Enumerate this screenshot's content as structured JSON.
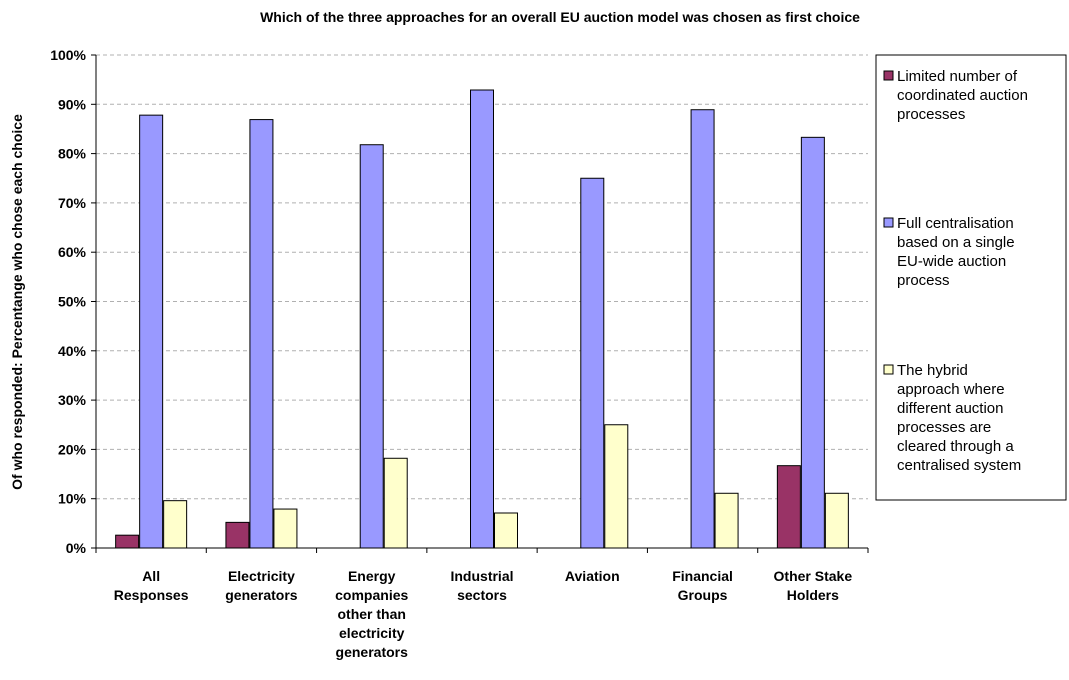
{
  "chart_data": {
    "type": "bar",
    "title": "Which of the three approaches for an overall EU auction model was chosen as first choice",
    "xlabel": "",
    "ylabel": "Of who responded: Percentange who chose each choice",
    "ylim": [
      0,
      100
    ],
    "yticks": [
      "0%",
      "10%",
      "20%",
      "30%",
      "40%",
      "50%",
      "60%",
      "70%",
      "80%",
      "90%",
      "100%"
    ],
    "grid": true,
    "legend_position": "right",
    "categories": [
      [
        "All",
        "Responses"
      ],
      [
        "Electricity",
        "generators"
      ],
      [
        "Energy",
        "companies",
        "other than",
        "electricity",
        "generators"
      ],
      [
        "Industrial",
        "sectors"
      ],
      [
        "Aviation"
      ],
      [
        "Financial",
        "Groups"
      ],
      [
        "Other Stake",
        "Holders"
      ]
    ],
    "series": [
      {
        "name": "Limited number of coordinated auction processes",
        "legend_lines": [
          "Limited number of",
          "coordinated auction",
          "processes"
        ],
        "color": "#993366",
        "values": [
          2.6,
          5.2,
          0,
          0,
          0,
          0,
          16.7
        ]
      },
      {
        "name": "Full centralisation based on a single EU-wide auction process",
        "legend_lines": [
          "Full centralisation",
          "based on a single",
          "EU-wide auction",
          "process"
        ],
        "color": "#9999FF",
        "values": [
          87.8,
          86.9,
          81.8,
          92.9,
          75.0,
          88.9,
          83.3
        ]
      },
      {
        "name": "The hybrid approach where different auction processes are cleared through a centralised system",
        "legend_lines": [
          "The hybrid",
          "approach where",
          "different auction",
          "processes are",
          "cleared through a",
          "centralised system"
        ],
        "color": "#FFFFCC",
        "values": [
          9.6,
          7.9,
          18.2,
          7.1,
          25.0,
          11.1,
          11.1
        ]
      }
    ]
  }
}
